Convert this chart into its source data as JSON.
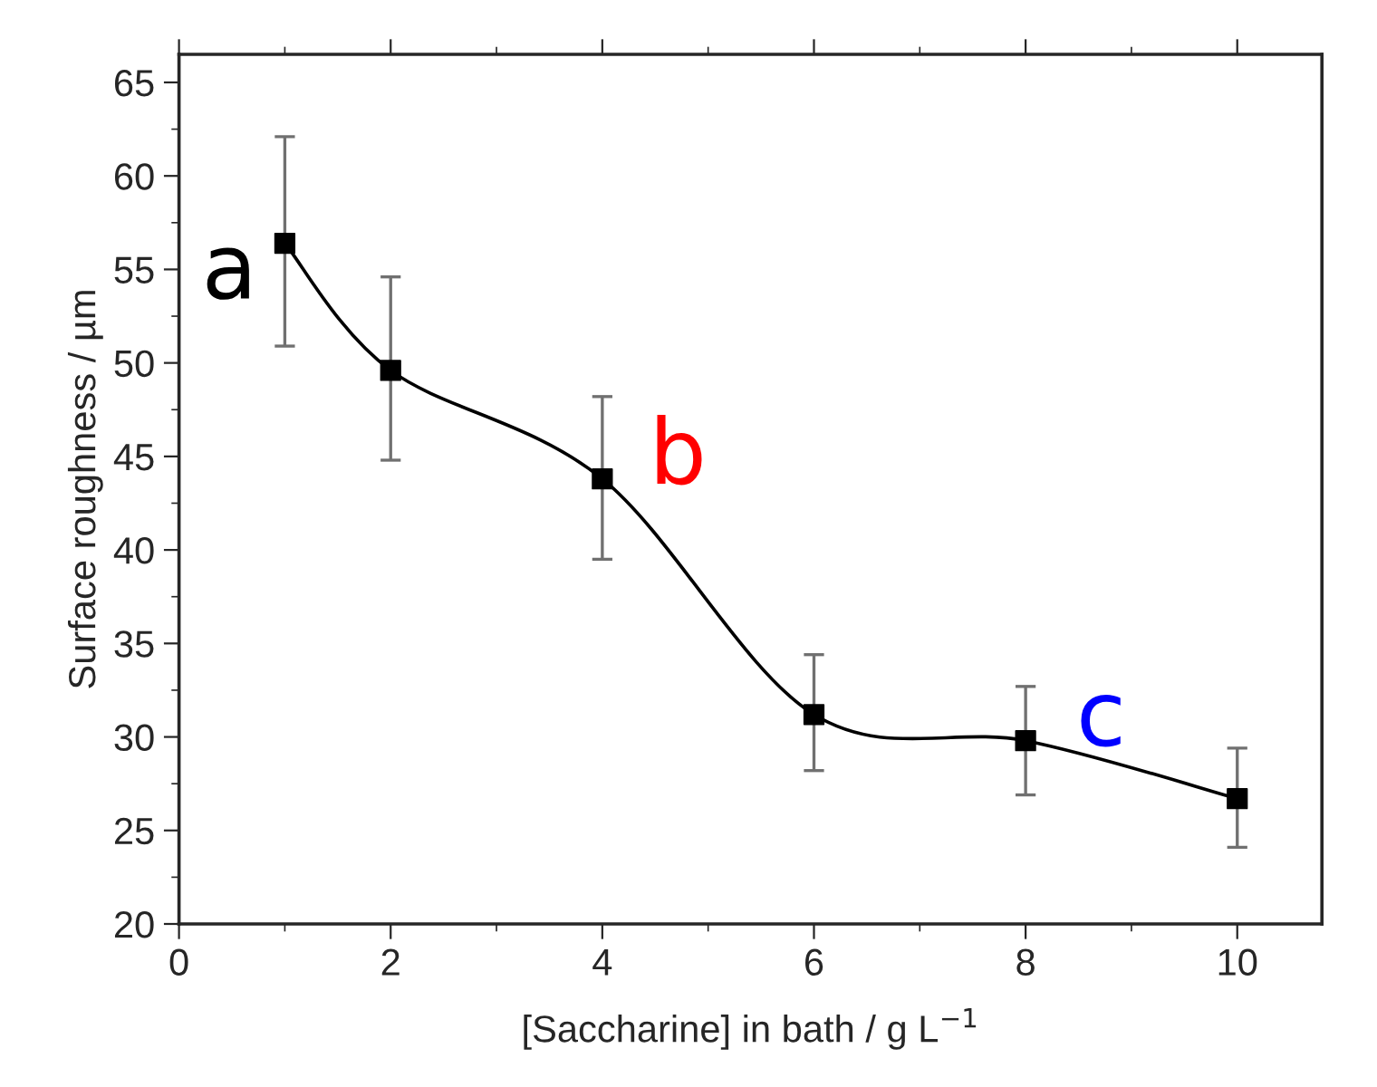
{
  "chart_data": {
    "type": "line",
    "xlabel": "[Saccharine] in bath / g L$^{−1}$",
    "ylabel": "Surface roughness / µm",
    "x": [
      1,
      2,
      4,
      6,
      8,
      10
    ],
    "series": [
      {
        "color": "#000000",
        "values": [
          56.4,
          49.6,
          43.8,
          31.2,
          29.8,
          26.7
        ],
        "errors": [
          [
            50.9,
            62.1
          ],
          [
            44.8,
            54.6
          ],
          [
            39.5,
            48.2
          ],
          [
            28.2,
            34.4
          ],
          [
            26.9,
            32.7
          ],
          [
            24.1,
            29.4
          ]
        ]
      }
    ],
    "marker": "square",
    "line_style": "solid",
    "xlim": [
      0,
      10.8
    ],
    "ylim": [
      20,
      66.5
    ],
    "xticks": [
      0,
      2,
      4,
      6,
      8,
      10
    ],
    "yticks": [
      20,
      25,
      30,
      35,
      40,
      45,
      50,
      55,
      60,
      65
    ],
    "grid": false,
    "legend": false,
    "annotations": [
      {
        "text": "a",
        "x": 1,
        "y": 56.4
      },
      {
        "text": "b",
        "x": 4,
        "y": 43.8
      },
      {
        "text": "c",
        "x": 8,
        "y": 29.8
      }
    ]
  }
}
